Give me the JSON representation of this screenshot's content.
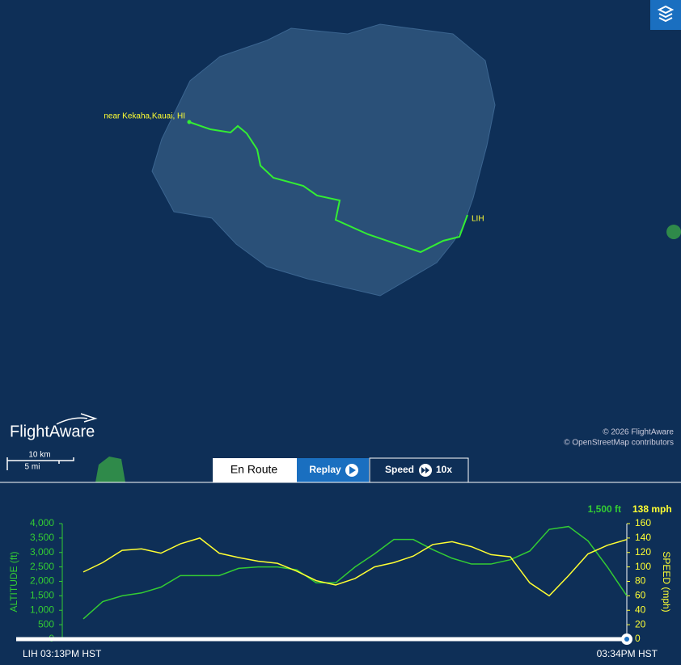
{
  "map": {
    "origin_label": "near Kekaha,Kauai, HI",
    "destination_label": "LIH",
    "logo": "FlightAware",
    "scale": {
      "metric": "10 km",
      "imperial": "5 mi"
    },
    "attribution": [
      "© 2026 FlightAware",
      "© OpenStreetMap contributors"
    ]
  },
  "controls": {
    "tabs": [
      "En Route",
      "Replay",
      "Speed"
    ],
    "speed_value": "10x"
  },
  "chart_data": {
    "type": "line",
    "start_label": "LIH 03:13PM HST",
    "end_label": "03:34PM HST",
    "ylabel": "ALTITUDE (ft)",
    "y2label": "SPEED (mph)",
    "ylim": [
      0,
      4000
    ],
    "yticks": [
      0,
      500,
      {
        "value": 1000,
        "label": "1,000"
      },
      {
        "value": 1500,
        "label": "1,500"
      },
      {
        "value": 2000,
        "label": "2,000"
      },
      {
        "value": 2500,
        "label": "2,500"
      },
      {
        "value": 3000,
        "label": "3,000"
      },
      {
        "value": 3500,
        "label": "3,500"
      },
      {
        "value": 4000,
        "label": "4,000"
      }
    ],
    "y2lim": [
      0,
      160
    ],
    "y2ticks": [
      0,
      20,
      40,
      60,
      80,
      100,
      120,
      140,
      160
    ],
    "series": [
      {
        "name": "Altitude",
        "color": "#33cc33",
        "readout": "1,500 ft",
        "values": [
          700,
          1300,
          1500,
          1600,
          1800,
          2200,
          2200,
          2200,
          2450,
          2500,
          2500,
          2400,
          1950,
          1950,
          2500,
          2950,
          3450,
          3450,
          3100,
          2800,
          2600,
          2600,
          2750,
          3050,
          3800,
          3900,
          3400,
          2500,
          1500
        ]
      },
      {
        "name": "Speed",
        "color": "#ffff33",
        "axis": "y2",
        "readout": "138 mph",
        "values": [
          93,
          106,
          123,
          125,
          119,
          132,
          140,
          119,
          113,
          108,
          105,
          94,
          81,
          75,
          84,
          100,
          106,
          115,
          131,
          135,
          128,
          117,
          114,
          78,
          60,
          88,
          118,
          130,
          138
        ]
      }
    ]
  }
}
